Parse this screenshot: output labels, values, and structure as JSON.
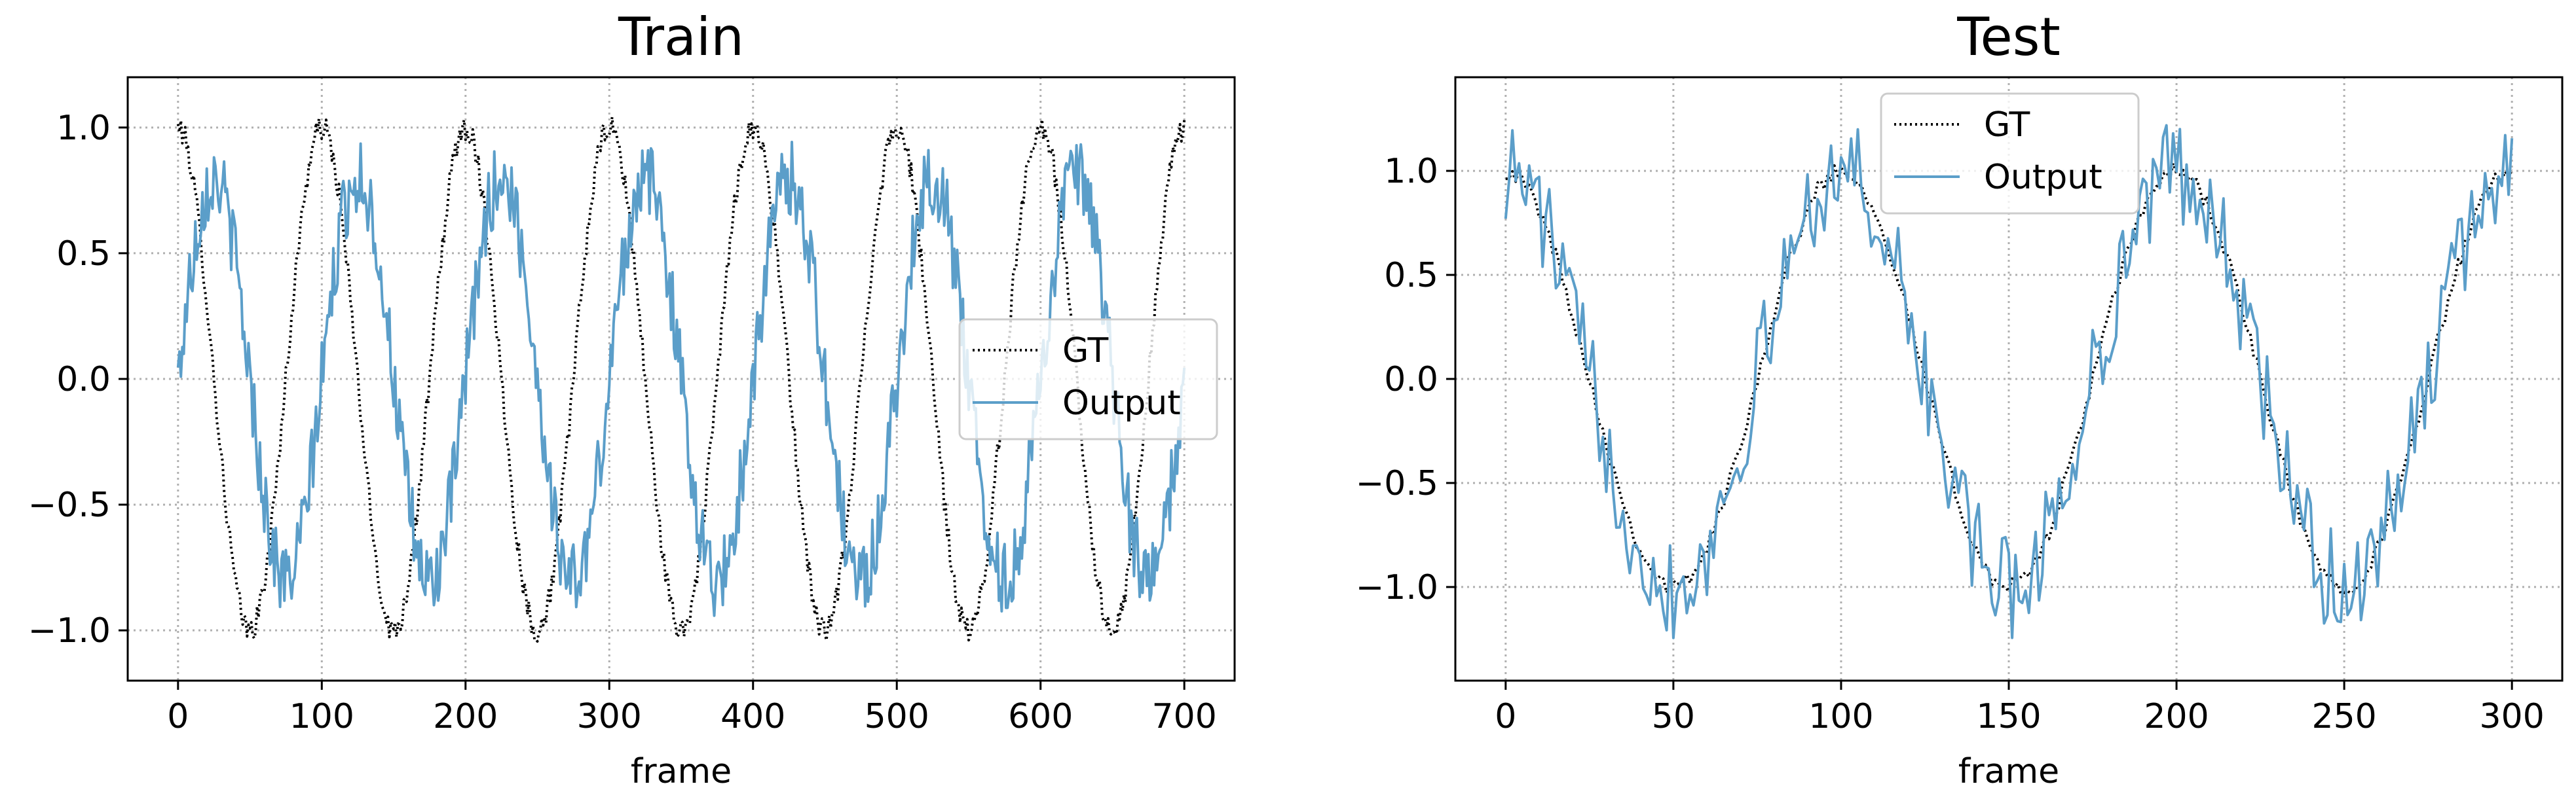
{
  "chart_data": [
    {
      "type": "line",
      "title": "Train",
      "xlabel": "frame",
      "ylabel": "",
      "xlim": [
        -35,
        735
      ],
      "ylim": [
        -1.2,
        1.2
      ],
      "xticks": [
        0,
        100,
        200,
        300,
        400,
        500,
        600,
        700
      ],
      "yticks": [
        -1.0,
        -0.5,
        0.0,
        0.5,
        1.0
      ],
      "xtick_labels": [
        "0",
        "100",
        "200",
        "300",
        "400",
        "500",
        "600",
        "700"
      ],
      "ytick_labels": [
        "−1.0",
        "−0.5",
        "0.0",
        "0.5",
        "1.0"
      ],
      "grid": true,
      "legend_position": "center-right",
      "legend": [
        "GT",
        "Output"
      ],
      "series": [
        {
          "name": "GT",
          "style": "dotted",
          "color": "#000000",
          "amplitude": 1.0,
          "period": 100,
          "phase_deg": 90,
          "x_start": 0,
          "x_end": 700,
          "noise": 0.05
        },
        {
          "name": "Output",
          "style": "solid",
          "color": "#5b9ec9",
          "amplitude": 0.8,
          "period": 100,
          "phase_deg": 0,
          "x_start": 0,
          "x_end": 700,
          "noise": 0.15
        }
      ]
    },
    {
      "type": "line",
      "title": "Test",
      "xlabel": "frame",
      "ylabel": "",
      "xlim": [
        -15,
        315
      ],
      "ylim": [
        -1.45,
        1.45
      ],
      "xticks": [
        0,
        50,
        100,
        150,
        200,
        250,
        300
      ],
      "yticks": [
        -1.0,
        -0.5,
        0.0,
        0.5,
        1.0
      ],
      "xtick_labels": [
        "0",
        "50",
        "100",
        "150",
        "200",
        "250",
        "300"
      ],
      "ytick_labels": [
        "−1.0",
        "−0.5",
        "0.0",
        "0.5",
        "1.0"
      ],
      "grid": true,
      "legend_position": "upper-center",
      "legend": [
        "GT",
        "Output"
      ],
      "series": [
        {
          "name": "GT",
          "style": "dotted",
          "color": "#000000",
          "amplitude": 1.0,
          "period": 100,
          "phase_deg": 90,
          "x_start": 0,
          "x_end": 300,
          "noise": 0.04
        },
        {
          "name": "Output",
          "style": "solid",
          "color": "#5b9ec9",
          "amplitude": 1.0,
          "period": 100,
          "phase_deg": 90,
          "x_start": 0,
          "x_end": 300,
          "noise": 0.25
        }
      ]
    }
  ]
}
